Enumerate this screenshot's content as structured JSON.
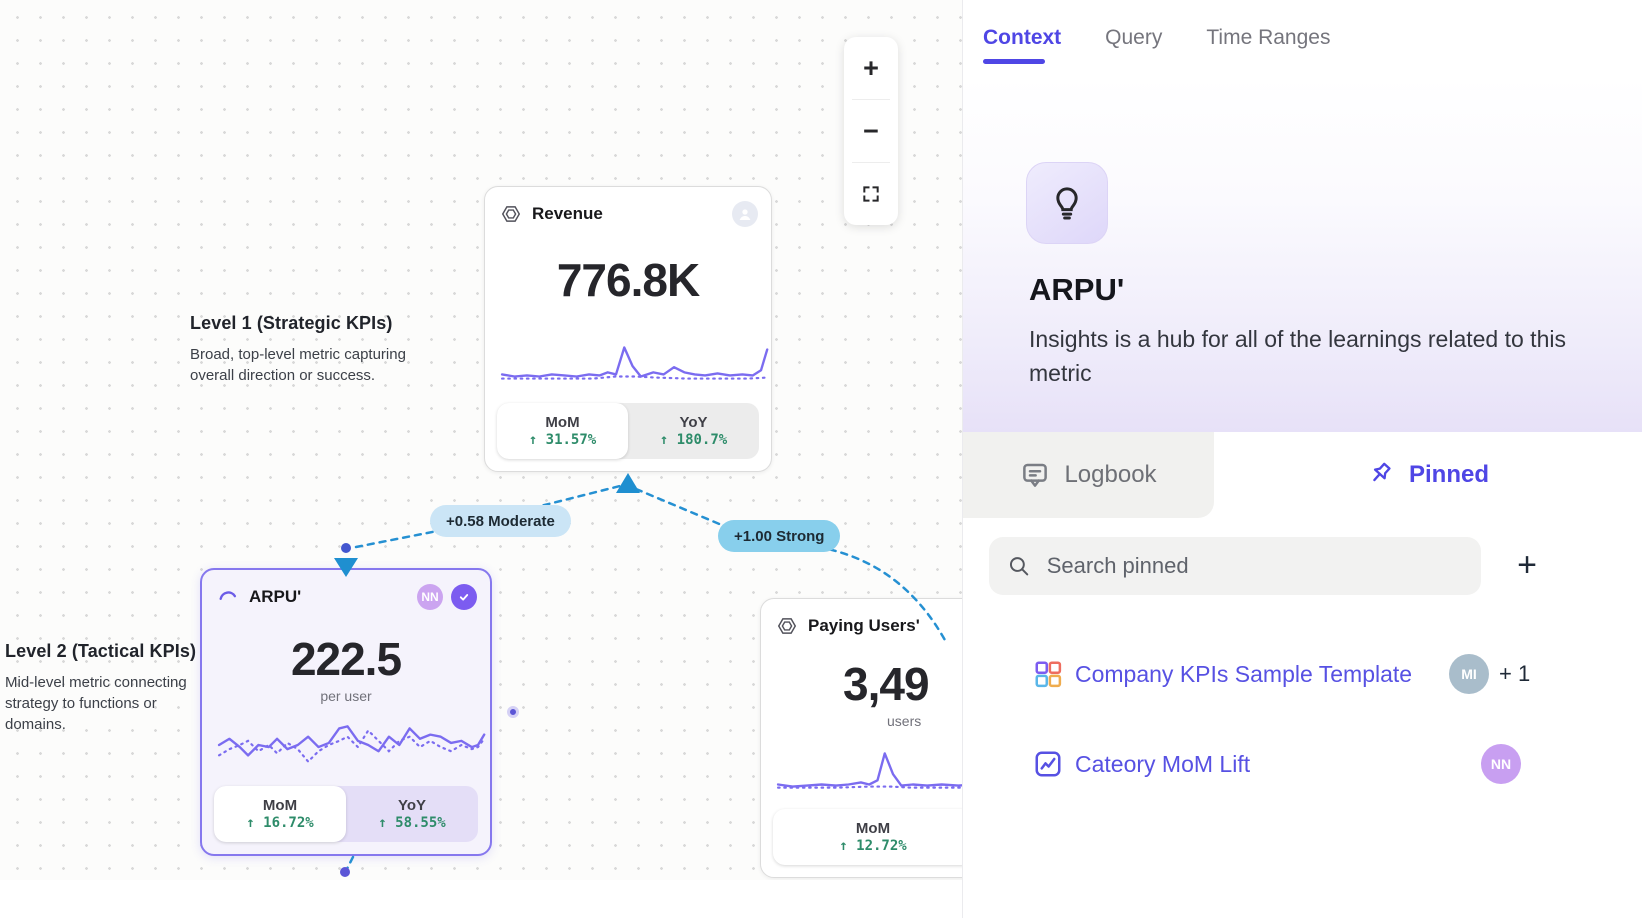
{
  "canvas": {
    "level_labels": [
      {
        "title": "Level 1 (Strategic KPIs)",
        "desc": "Broad, top-level metric capturing overall direction or success."
      },
      {
        "title": "Level 2 (Tactical KPIs)",
        "desc": "Mid-level metric connecting strategy to functions or domains."
      }
    ],
    "edge_badges": [
      {
        "label": "+0.58 Moderate"
      },
      {
        "label": "+1.00 Strong"
      }
    ],
    "cards": {
      "revenue": {
        "title": "Revenue",
        "value": "776.8K",
        "stats": [
          {
            "label": "MoM",
            "value": "↑ 31.57%"
          },
          {
            "label": "YoY",
            "value": "↑ 180.7%"
          }
        ],
        "spark": {
          "solid": [
            [
              2,
              40
            ],
            [
              14,
              42
            ],
            [
              26,
              41
            ],
            [
              38,
              42
            ],
            [
              50,
              40
            ],
            [
              62,
              41
            ],
            [
              74,
              42
            ],
            [
              86,
              40
            ],
            [
              96,
              41
            ],
            [
              104,
              38
            ],
            [
              112,
              40
            ],
            [
              120,
              14
            ],
            [
              128,
              32
            ],
            [
              136,
              42
            ],
            [
              148,
              38
            ],
            [
              158,
              40
            ],
            [
              168,
              33
            ],
            [
              178,
              38
            ],
            [
              188,
              40
            ],
            [
              198,
              41
            ],
            [
              210,
              39
            ],
            [
              222,
              41
            ],
            [
              234,
              40
            ],
            [
              244,
              41
            ],
            [
              252,
              36
            ],
            [
              258,
              16
            ]
          ],
          "dotted": [
            [
              2,
              44
            ],
            [
              30,
              44
            ],
            [
              60,
              44
            ],
            [
              90,
              44
            ],
            [
              112,
              42
            ],
            [
              130,
              42
            ],
            [
              150,
              43
            ],
            [
              180,
              44
            ],
            [
              210,
              44
            ],
            [
              240,
              44
            ],
            [
              258,
              43
            ]
          ]
        }
      },
      "arpu": {
        "title": "ARPU'",
        "value": "222.5",
        "unit": "per user",
        "avatar": "NN",
        "stats": [
          {
            "label": "MoM",
            "value": "↑ 16.72%"
          },
          {
            "label": "YoY",
            "value": "↑ 58.55%"
          }
        ],
        "spark": {
          "solid": [
            [
              2,
              28
            ],
            [
              12,
              22
            ],
            [
              22,
              30
            ],
            [
              30,
              38
            ],
            [
              40,
              28
            ],
            [
              50,
              30
            ],
            [
              58,
              22
            ],
            [
              68,
              32
            ],
            [
              78,
              28
            ],
            [
              88,
              20
            ],
            [
              98,
              30
            ],
            [
              108,
              26
            ],
            [
              118,
              12
            ],
            [
              126,
              10
            ],
            [
              136,
              24
            ],
            [
              146,
              28
            ],
            [
              156,
              34
            ],
            [
              166,
              20
            ],
            [
              176,
              28
            ],
            [
              186,
              12
            ],
            [
              196,
              22
            ],
            [
              206,
              18
            ],
            [
              216,
              20
            ],
            [
              226,
              26
            ],
            [
              236,
              24
            ],
            [
              246,
              30
            ],
            [
              252,
              28
            ],
            [
              258,
              18
            ]
          ],
          "dotted": [
            [
              2,
              38
            ],
            [
              12,
              32
            ],
            [
              22,
              28
            ],
            [
              30,
              24
            ],
            [
              40,
              34
            ],
            [
              50,
              28
            ],
            [
              58,
              36
            ],
            [
              68,
              26
            ],
            [
              78,
              32
            ],
            [
              88,
              44
            ],
            [
              98,
              34
            ],
            [
              108,
              28
            ],
            [
              118,
              24
            ],
            [
              126,
              20
            ],
            [
              136,
              30
            ],
            [
              146,
              14
            ],
            [
              156,
              24
            ],
            [
              166,
              34
            ],
            [
              176,
              24
            ],
            [
              186,
              20
            ],
            [
              196,
              30
            ],
            [
              206,
              24
            ],
            [
              216,
              30
            ],
            [
              226,
              34
            ],
            [
              236,
              28
            ],
            [
              246,
              32
            ],
            [
              252,
              30
            ],
            [
              258,
              22
            ]
          ]
        }
      },
      "paying_users": {
        "title": "Paying Users'",
        "value": "3,49",
        "unit": "users",
        "stats": [
          {
            "label": "MoM",
            "value": "↑ 12.72%"
          }
        ],
        "spark": {
          "solid": [
            [
              2,
              42
            ],
            [
              16,
              44
            ],
            [
              30,
              43
            ],
            [
              44,
              42
            ],
            [
              58,
              43
            ],
            [
              70,
              42
            ],
            [
              82,
              40
            ],
            [
              90,
              42
            ],
            [
              98,
              38
            ],
            [
              105,
              12
            ],
            [
              113,
              32
            ],
            [
              121,
              43
            ],
            [
              132,
              42
            ],
            [
              146,
              43
            ],
            [
              160,
              42
            ],
            [
              176,
              43
            ],
            [
              192,
              42
            ],
            [
              210,
              43
            ],
            [
              228,
              42
            ],
            [
              244,
              43
            ],
            [
              258,
              41
            ]
          ],
          "dotted": [
            [
              2,
              45
            ],
            [
              30,
              45
            ],
            [
              60,
              45
            ],
            [
              90,
              44
            ],
            [
              110,
              44
            ],
            [
              130,
              45
            ],
            [
              160,
              45
            ],
            [
              190,
              45
            ],
            [
              220,
              45
            ],
            [
              258,
              45
            ]
          ]
        }
      }
    },
    "zoom_controls": {
      "zoom_in": "+",
      "zoom_out": "−"
    }
  },
  "panel": {
    "tabs": [
      {
        "label": "Context"
      },
      {
        "label": "Query"
      },
      {
        "label": "Time Ranges"
      }
    ],
    "hero": {
      "title": "ARPU'",
      "description": "Insights is a hub for all of the learnings related to this metric"
    },
    "subtabs": [
      {
        "label": "Logbook"
      },
      {
        "label": "Pinned"
      }
    ],
    "search": {
      "placeholder": "Search pinned"
    },
    "add_button": "+",
    "pinned_items": [
      {
        "label": "Company KPIs Sample Template",
        "avatar": "MI",
        "extra": "+ 1"
      },
      {
        "label": "Cateory MoM Lift",
        "avatar": "NN",
        "extra": ""
      }
    ]
  },
  "colors": {
    "accent_indigo": "#4f46e5",
    "node_purple": "#7b6cf0",
    "edge_blue": "#2590d2",
    "badge_moderate_bg": "#cbe5f6",
    "badge_strong_bg": "#88cfec",
    "stat_green": "#2e8c6a"
  }
}
